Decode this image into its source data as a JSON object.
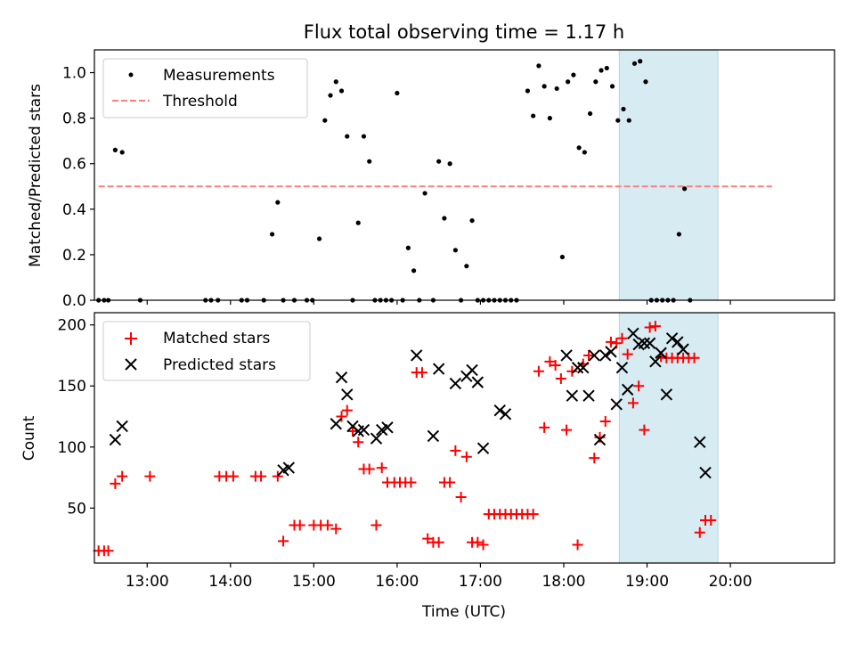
{
  "figure": {
    "title": "Flux total observing time = 1.17 h",
    "xlabel": "Time (UTC)"
  },
  "chart_data": [
    {
      "type": "scatter",
      "ylabel": "Matched/Predicted stars",
      "xlim": [
        "12:22",
        "21:15"
      ],
      "ylim": [
        0,
        1.1
      ],
      "yticks": [
        "0.0",
        "0.2",
        "0.4",
        "0.6",
        "0.8",
        "1.0"
      ],
      "xticks": [
        "13:00",
        "14:00",
        "15:00",
        "16:00",
        "17:00",
        "18:00",
        "19:00",
        "20:00"
      ],
      "legend": {
        "placement": "top-left",
        "entries": [
          "Measurements",
          "Threshold"
        ]
      },
      "highlight_span": {
        "from": "18:40",
        "to": "19:51",
        "color": "#add8e6"
      },
      "threshold": {
        "name": "Threshold",
        "y": 0.5,
        "from": "12:25",
        "to": "20:30",
        "color": "#ff7f7f"
      },
      "series": [
        {
          "name": "Measurements",
          "color": "#000000",
          "points": [
            [
              "12:25",
              0
            ],
            [
              "12:29",
              0
            ],
            [
              "12:32",
              0
            ],
            [
              "12:37",
              0.66
            ],
            [
              "12:42",
              0.65
            ],
            [
              "12:55",
              0
            ],
            [
              "13:42",
              0
            ],
            [
              "13:46",
              0
            ],
            [
              "13:51",
              0
            ],
            [
              "14:08",
              0
            ],
            [
              "14:12",
              0
            ],
            [
              "14:24",
              0
            ],
            [
              "14:30",
              0.29
            ],
            [
              "14:34",
              0.43
            ],
            [
              "14:38",
              0
            ],
            [
              "14:46",
              0
            ],
            [
              "14:55",
              0
            ],
            [
              "14:59",
              0
            ],
            [
              "15:04",
              0.27
            ],
            [
              "15:08",
              0.79
            ],
            [
              "15:12",
              0.9
            ],
            [
              "15:16",
              0.96
            ],
            [
              "15:20",
              0.92
            ],
            [
              "15:24",
              0.72
            ],
            [
              "15:28",
              0
            ],
            [
              "15:32",
              0.34
            ],
            [
              "15:36",
              0.72
            ],
            [
              "15:40",
              0.61
            ],
            [
              "15:44",
              0
            ],
            [
              "15:48",
              0
            ],
            [
              "15:52",
              0
            ],
            [
              "15:56",
              0
            ],
            [
              "16:00",
              0.91
            ],
            [
              "16:04",
              0
            ],
            [
              "16:08",
              0.23
            ],
            [
              "16:12",
              0.13
            ],
            [
              "16:16",
              0
            ],
            [
              "16:20",
              0.47
            ],
            [
              "16:26",
              0
            ],
            [
              "16:30",
              0.61
            ],
            [
              "16:34",
              0.36
            ],
            [
              "16:38",
              0.6
            ],
            [
              "16:42",
              0.22
            ],
            [
              "16:46",
              0
            ],
            [
              "16:50",
              0.15
            ],
            [
              "16:54",
              0.35
            ],
            [
              "16:58",
              0
            ],
            [
              "17:02",
              0
            ],
            [
              "17:06",
              0
            ],
            [
              "17:10",
              0
            ],
            [
              "17:14",
              0
            ],
            [
              "17:18",
              0
            ],
            [
              "17:22",
              0
            ],
            [
              "17:26",
              0
            ],
            [
              "17:34",
              0.92
            ],
            [
              "17:38",
              0.81
            ],
            [
              "17:42",
              1.03
            ],
            [
              "17:46",
              0.94
            ],
            [
              "17:50",
              0.8
            ],
            [
              "17:55",
              0.93
            ],
            [
              "17:59",
              0.19
            ],
            [
              "18:03",
              0.96
            ],
            [
              "18:07",
              0.99
            ],
            [
              "18:11",
              0.67
            ],
            [
              "18:15",
              0.65
            ],
            [
              "18:19",
              0.82
            ],
            [
              "18:23",
              0.96
            ],
            [
              "18:27",
              1.01
            ],
            [
              "18:31",
              1.02
            ],
            [
              "18:35",
              0.94
            ],
            [
              "18:39",
              0.79
            ],
            [
              "18:43",
              0.84
            ],
            [
              "18:47",
              0.79
            ],
            [
              "18:51",
              1.04
            ],
            [
              "18:55",
              1.05
            ],
            [
              "18:59",
              0.96
            ],
            [
              "19:03",
              0
            ],
            [
              "19:07",
              0
            ],
            [
              "19:11",
              0
            ],
            [
              "19:15",
              0
            ],
            [
              "19:19",
              0
            ],
            [
              "19:23",
              0.29
            ],
            [
              "19:27",
              0.49
            ],
            [
              "19:31",
              0
            ]
          ]
        }
      ]
    },
    {
      "type": "scatter",
      "ylabel": "Count",
      "xlim": [
        "12:22",
        "21:15"
      ],
      "ylim": [
        5,
        210
      ],
      "yticks": [
        "50",
        "100",
        "150",
        "200"
      ],
      "xticks": [
        "13:00",
        "14:00",
        "15:00",
        "16:00",
        "17:00",
        "18:00",
        "19:00",
        "20:00"
      ],
      "legend": {
        "placement": "top-left",
        "entries": [
          "Matched stars",
          "Predicted stars"
        ]
      },
      "highlight_span": {
        "from": "18:40",
        "to": "19:51",
        "color": "#add8e6"
      },
      "series": [
        {
          "name": "Matched stars",
          "marker": "plus",
          "color": "#ff0000",
          "points": [
            [
              "12:25",
              15
            ],
            [
              "12:29",
              15
            ],
            [
              "12:32",
              15
            ],
            [
              "12:37",
              70
            ],
            [
              "12:42",
              76
            ],
            [
              "13:02",
              76
            ],
            [
              "13:52",
              76
            ],
            [
              "13:57",
              76
            ],
            [
              "14:02",
              76
            ],
            [
              "14:18",
              76
            ],
            [
              "14:22",
              76
            ],
            [
              "14:34",
              76
            ],
            [
              "14:38",
              23
            ],
            [
              "14:46",
              36
            ],
            [
              "14:50",
              36
            ],
            [
              "15:00",
              36
            ],
            [
              "15:05",
              36
            ],
            [
              "15:10",
              36
            ],
            [
              "15:16",
              33
            ],
            [
              "15:20",
              125
            ],
            [
              "15:24",
              130
            ],
            [
              "15:28",
              113
            ],
            [
              "15:32",
              104
            ],
            [
              "15:36",
              82
            ],
            [
              "15:40",
              82
            ],
            [
              "15:45",
              36
            ],
            [
              "15:49",
              83
            ],
            [
              "15:53",
              71
            ],
            [
              "15:58",
              71
            ],
            [
              "16:02",
              71
            ],
            [
              "16:06",
              71
            ],
            [
              "16:10",
              71
            ],
            [
              "16:14",
              161
            ],
            [
              "16:18",
              161
            ],
            [
              "16:22",
              25
            ],
            [
              "16:26",
              22
            ],
            [
              "16:30",
              22
            ],
            [
              "16:34",
              71
            ],
            [
              "16:38",
              71
            ],
            [
              "16:42",
              97
            ],
            [
              "16:46",
              59
            ],
            [
              "16:50",
              92
            ],
            [
              "16:54",
              22
            ],
            [
              "16:58",
              22
            ],
            [
              "17:02",
              20
            ],
            [
              "17:06",
              45
            ],
            [
              "17:10",
              45
            ],
            [
              "17:14",
              45
            ],
            [
              "17:18",
              45
            ],
            [
              "17:22",
              45
            ],
            [
              "17:26",
              45
            ],
            [
              "17:30",
              45
            ],
            [
              "17:34",
              45
            ],
            [
              "17:38",
              45
            ],
            [
              "17:42",
              162
            ],
            [
              "17:46",
              116
            ],
            [
              "17:50",
              170
            ],
            [
              "17:54",
              167
            ],
            [
              "17:58",
              156
            ],
            [
              "18:02",
              114
            ],
            [
              "18:06",
              162
            ],
            [
              "18:10",
              20
            ],
            [
              "18:14",
              168
            ],
            [
              "18:18",
              175
            ],
            [
              "18:22",
              91
            ],
            [
              "18:26",
              108
            ],
            [
              "18:30",
              121
            ],
            [
              "18:34",
              186
            ],
            [
              "18:38",
              185
            ],
            [
              "18:42",
              189
            ],
            [
              "18:46",
              176
            ],
            [
              "18:50",
              136
            ],
            [
              "18:54",
              150
            ],
            [
              "18:58",
              114
            ],
            [
              "19:02",
              198
            ],
            [
              "19:06",
              199
            ],
            [
              "19:10",
              174
            ],
            [
              "19:14",
              173
            ],
            [
              "19:18",
              173
            ],
            [
              "19:22",
              173
            ],
            [
              "19:26",
              173
            ],
            [
              "19:30",
              173
            ],
            [
              "19:34",
              173
            ],
            [
              "19:38",
              30
            ],
            [
              "19:42",
              40
            ],
            [
              "19:46",
              40
            ]
          ]
        },
        {
          "name": "Predicted stars",
          "marker": "x",
          "color": "#000000",
          "points": [
            [
              "12:37",
              106
            ],
            [
              "12:42",
              117
            ],
            [
              "14:38",
              81
            ],
            [
              "14:42",
              83
            ],
            [
              "15:16",
              119
            ],
            [
              "15:20",
              157
            ],
            [
              "15:24",
              143
            ],
            [
              "15:28",
              117
            ],
            [
              "15:32",
              113
            ],
            [
              "15:36",
              114
            ],
            [
              "15:45",
              107
            ],
            [
              "15:49",
              114
            ],
            [
              "15:53",
              116
            ],
            [
              "16:14",
              175
            ],
            [
              "16:26",
              109
            ],
            [
              "16:30",
              164
            ],
            [
              "16:42",
              152
            ],
            [
              "16:50",
              158
            ],
            [
              "16:54",
              163
            ],
            [
              "16:58",
              153
            ],
            [
              "17:02",
              99
            ],
            [
              "17:14",
              130
            ],
            [
              "17:18",
              127
            ],
            [
              "18:02",
              175
            ],
            [
              "18:06",
              142
            ],
            [
              "18:10",
              165
            ],
            [
              "18:14",
              165
            ],
            [
              "18:18",
              142
            ],
            [
              "18:22",
              175
            ],
            [
              "18:26",
              106
            ],
            [
              "18:30",
              175
            ],
            [
              "18:34",
              178
            ],
            [
              "18:38",
              135
            ],
            [
              "18:42",
              165
            ],
            [
              "18:46",
              147
            ],
            [
              "18:50",
              193
            ],
            [
              "18:54",
              184
            ],
            [
              "18:58",
              185
            ],
            [
              "19:02",
              185
            ],
            [
              "19:06",
              170
            ],
            [
              "19:10",
              177
            ],
            [
              "19:14",
              143
            ],
            [
              "19:18",
              189
            ],
            [
              "19:22",
              186
            ],
            [
              "19:26",
              180
            ],
            [
              "19:38",
              104
            ],
            [
              "19:42",
              79
            ]
          ]
        }
      ]
    }
  ]
}
